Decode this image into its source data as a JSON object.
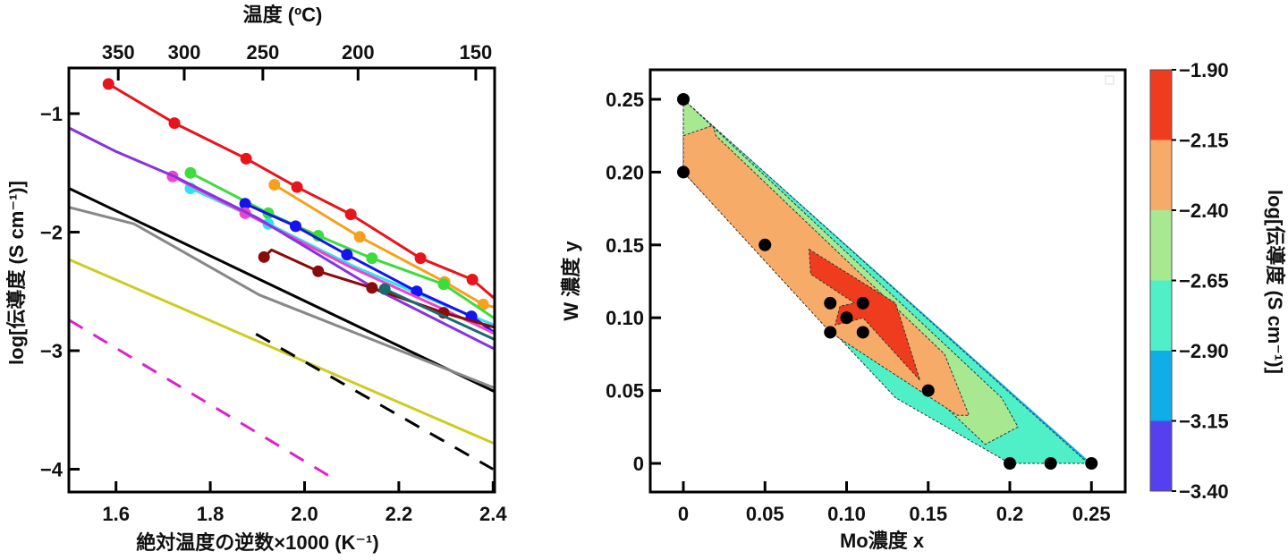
{
  "chart_data": [
    {
      "type": "line",
      "title": "",
      "xlabel": "絶対温度の逆数×1000 (K⁻¹)",
      "ylabel": "log[伝導度 (S cm⁻¹)]",
      "top_xlabel": "温度 (ºC)",
      "xlim": [
        1.5,
        2.4
      ],
      "ylim": [
        -4.2,
        -0.6
      ],
      "xticks": [
        1.6,
        1.8,
        2.0,
        2.2,
        2.4
      ],
      "xtick_labels": [
        "1.6",
        "1.8",
        "2.0",
        "2.2",
        "2.4"
      ],
      "yticks": [
        -1,
        -2,
        -3,
        -4
      ],
      "ytick_labels": [
        "−1",
        "−2",
        "−3",
        "−4"
      ],
      "top_ticks_celsius": [
        350,
        300,
        250,
        200,
        150
      ],
      "top_tick_labels": [
        "350",
        "300",
        "250",
        "200",
        "150"
      ],
      "grid": false,
      "series": [
        {
          "name": "red",
          "color": "#e8141b",
          "style": "solid",
          "markers": true,
          "x": [
            1.584,
            1.724,
            1.876,
            1.984,
            2.098,
            2.246,
            2.356,
            2.4
          ],
          "y": [
            -0.75,
            -1.08,
            -1.38,
            -1.62,
            -1.85,
            -2.22,
            -2.4,
            -2.55
          ],
          "marker_count": 7
        },
        {
          "name": "orange",
          "color": "#f7a01c",
          "style": "solid",
          "markers": true,
          "x": [
            1.936,
            2.117,
            2.297,
            2.379,
            2.4
          ],
          "y": [
            -1.6,
            -2.04,
            -2.42,
            -2.61,
            -2.63
          ],
          "marker_count": 4
        },
        {
          "name": "green",
          "color": "#3ddc3d",
          "style": "solid",
          "markers": true,
          "x": [
            1.758,
            1.923,
            2.029,
            2.143,
            2.295,
            2.4
          ],
          "y": [
            -1.5,
            -1.84,
            -2.03,
            -2.22,
            -2.44,
            -2.72
          ],
          "marker_count": 5
        },
        {
          "name": "cyan",
          "color": "#33e0ee",
          "style": "solid",
          "markers": true,
          "x": [
            1.758,
            1.923,
            2.1,
            2.3,
            2.4
          ],
          "y": [
            -1.63,
            -1.93,
            -2.28,
            -2.62,
            -2.78
          ],
          "marker_count": 2
        },
        {
          "name": "blue",
          "color": "#1414ee",
          "style": "solid",
          "markers": true,
          "x": [
            1.874,
            1.981,
            2.09,
            2.238,
            2.354,
            2.4
          ],
          "y": [
            -1.76,
            -1.95,
            -2.19,
            -2.5,
            -2.71,
            -2.84
          ],
          "marker_count": 5
        },
        {
          "name": "pink",
          "color": "#ee44cc",
          "style": "solid",
          "markers": true,
          "x": [
            1.72,
            1.874,
            2.1,
            2.3,
            2.4
          ],
          "y": [
            -1.53,
            -1.84,
            -2.3,
            -2.66,
            -2.85
          ],
          "marker_count": 2
        },
        {
          "name": "purple",
          "color": "#8833dd",
          "style": "solid",
          "markers": false,
          "x": [
            1.5,
            1.6,
            1.724,
            1.9,
            2.151,
            2.4
          ],
          "y": [
            -1.12,
            -1.32,
            -1.53,
            -1.88,
            -2.48,
            -2.98
          ]
        },
        {
          "name": "dark-red",
          "color": "#8b0a0a",
          "style": "solid",
          "markers": true,
          "x": [
            1.914,
            1.93,
            2.029,
            2.143,
            2.295,
            2.4
          ],
          "y": [
            -2.21,
            -2.15,
            -2.33,
            -2.47,
            -2.68,
            -2.8
          ],
          "marker_points": [
            [
              1.914,
              -2.21
            ],
            [
              2.029,
              -2.33
            ],
            [
              2.143,
              -2.47
            ],
            [
              2.295,
              -2.68
            ]
          ]
        },
        {
          "name": "teal",
          "color": "#1a6b6b",
          "style": "solid",
          "markers": true,
          "x": [
            2.17,
            2.4
          ],
          "y": [
            -2.48,
            -2.9
          ],
          "marker_count": 1
        },
        {
          "name": "black",
          "color": "#000000",
          "style": "solid",
          "markers": false,
          "x": [
            1.5,
            2.4
          ],
          "y": [
            -1.63,
            -3.34
          ]
        },
        {
          "name": "gray",
          "color": "#888888",
          "style": "solid",
          "markers": false,
          "x": [
            1.5,
            1.638,
            1.904,
            2.4
          ],
          "y": [
            -1.79,
            -1.93,
            -2.53,
            -3.31
          ]
        },
        {
          "name": "yellow",
          "color": "#cccc22",
          "style": "solid",
          "markers": false,
          "x": [
            1.5,
            2.4
          ],
          "y": [
            -2.23,
            -3.78
          ]
        },
        {
          "name": "black-dashed",
          "color": "#000000",
          "style": "dashed",
          "markers": false,
          "x": [
            1.897,
            2.4
          ],
          "y": [
            -2.86,
            -4.0
          ]
        },
        {
          "name": "magenta-dashed",
          "color": "#dd22cc",
          "style": "dashed",
          "markers": false,
          "x": [
            1.5,
            2.066
          ],
          "y": [
            -2.74,
            -4.09
          ]
        }
      ]
    },
    {
      "type": "contour",
      "title": "",
      "xlabel": "Mo濃度 x",
      "ylabel": "W 濃度 y",
      "xlim": [
        -0.02,
        0.27
      ],
      "ylim": [
        -0.02,
        0.27
      ],
      "xticks": [
        0,
        0.05,
        0.1,
        0.15,
        0.2,
        0.25
      ],
      "xtick_labels": [
        "0",
        "0.05",
        "0.10",
        "0.15",
        "0.2",
        "0.25"
      ],
      "yticks": [
        0,
        0.05,
        0.1,
        0.15,
        0.2,
        0.25
      ],
      "ytick_labels": [
        "0",
        "0.05",
        "0.10",
        "0.15",
        "0.20",
        "0.25"
      ],
      "grid": false,
      "legend": "top-right (empty)",
      "colorbar": {
        "label": "log[伝導度 (S cm⁻¹)]",
        "levels": [
          -1.9,
          -2.15,
          -2.4,
          -2.65,
          -2.9,
          -3.15,
          -3.4
        ],
        "level_labels": [
          "−1.90",
          "−2.15",
          "−2.40",
          "−2.65",
          "−2.90",
          "−3.15",
          "−3.40"
        ],
        "colors": [
          "#f03c1e",
          "#f7ab68",
          "#a8e890",
          "#4ff0c8",
          "#10aee6",
          "#5540f0"
        ]
      },
      "points": [
        {
          "x": 0,
          "y": 0.25
        },
        {
          "x": 0,
          "y": 0.2
        },
        {
          "x": 0.05,
          "y": 0.15
        },
        {
          "x": 0.09,
          "y": 0.11
        },
        {
          "x": 0.11,
          "y": 0.11
        },
        {
          "x": 0.1,
          "y": 0.1
        },
        {
          "x": 0.09,
          "y": 0.09
        },
        {
          "x": 0.11,
          "y": 0.09
        },
        {
          "x": 0.15,
          "y": 0.05
        },
        {
          "x": 0.2,
          "y": 0
        },
        {
          "x": 0.225,
          "y": 0
        },
        {
          "x": 0.25,
          "y": 0
        }
      ],
      "regions": [
        {
          "level_band": "-3.15 to -2.90",
          "color": "#10aee6",
          "polygon": [
            [
              0,
              0.25
            ],
            [
              0.25,
              0
            ],
            [
              0.23,
              0
            ],
            [
              0.2,
              0.03
            ],
            [
              0,
              0.226
            ]
          ]
        },
        {
          "level_band": "-2.90 to -2.65",
          "color": "#4ff0c8",
          "polygon": [
            [
              0,
              0.25
            ],
            [
              0.245,
              0.003
            ],
            [
              0.25,
              0
            ],
            [
              0.2,
              0
            ],
            [
              0.13,
              0.045
            ],
            [
              0,
              0.2
            ]
          ]
        },
        {
          "level_band": "-2.65 to -2.40",
          "color": "#a8e890",
          "polygon": [
            [
              0,
              0.25
            ],
            [
              0.195,
              0.045
            ],
            [
              0.205,
              0.025
            ],
            [
              0.185,
              0.013
            ],
            [
              0.15,
              0.05
            ],
            [
              0.12,
              0.07
            ],
            [
              0,
              0.2
            ]
          ]
        },
        {
          "level_band": "-2.40 to -2.15",
          "color": "#f7ab68",
          "polygon": [
            [
              0,
              0.225
            ],
            [
              0.018,
              0.232
            ],
            [
              0.02,
              0.225
            ],
            [
              0.16,
              0.075
            ],
            [
              0.175,
              0.033
            ],
            [
              0.168,
              0.033
            ],
            [
              0.12,
              0.068
            ],
            [
              0.09,
              0.09
            ],
            [
              0,
              0.2
            ]
          ]
        },
        {
          "level_band": "-2.15 to -1.90",
          "color": "#f03c1e",
          "polygon": [
            [
              0.077,
              0.147
            ],
            [
              0.13,
              0.11
            ],
            [
              0.145,
              0.057
            ],
            [
              0.11,
              0.1
            ],
            [
              0.104,
              0.098
            ],
            [
              0.093,
              0.095
            ],
            [
              0.096,
              0.108
            ],
            [
              0.105,
              0.11
            ],
            [
              0.078,
              0.13
            ]
          ]
        }
      ]
    }
  ]
}
